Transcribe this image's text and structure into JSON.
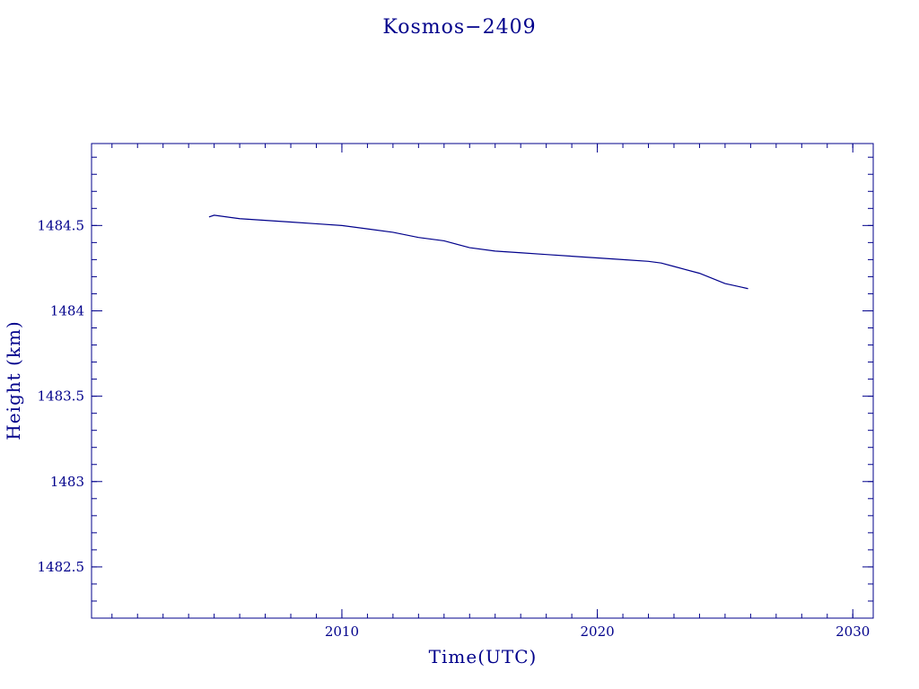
{
  "colors": {
    "ink": "#00008b",
    "background": "#ffffff"
  },
  "chart_data": {
    "type": "line",
    "title": "Kosmos−2409",
    "xlabel": "Time(UTC)",
    "ylabel": "Height (km)",
    "xlim": [
      2000.2,
      2030.8
    ],
    "ylim": [
      1482.2,
      1484.98
    ],
    "x_ticks": [
      2010,
      2020,
      2030
    ],
    "x_tick_labels": [
      "2010",
      "2020",
      "2030"
    ],
    "y_ticks": [
      1482.5,
      1483,
      1483.5,
      1484,
      1484.5
    ],
    "y_tick_labels": [
      "1482.5",
      "1483",
      "1483.5",
      "1484",
      "1484.5"
    ],
    "grid": false,
    "series": [
      {
        "x": [
          2004.8,
          2005.0,
          2006.0,
          2007.0,
          2008.0,
          2009.0,
          2010.0,
          2011.0,
          2012.0,
          2013.0,
          2013.5,
          2014.0,
          2015.0,
          2016.0,
          2017.0,
          2018.0,
          2019.0,
          2020.0,
          2021.0,
          2022.0,
          2022.5,
          2023.0,
          2024.0,
          2024.5,
          2025.0,
          2025.3,
          2025.6,
          2025.9
        ],
        "y": [
          1484.55,
          1484.56,
          1484.54,
          1484.53,
          1484.52,
          1484.51,
          1484.5,
          1484.48,
          1484.46,
          1484.43,
          1484.42,
          1484.41,
          1484.37,
          1484.35,
          1484.34,
          1484.33,
          1484.32,
          1484.31,
          1484.3,
          1484.29,
          1484.28,
          1484.26,
          1484.22,
          1484.19,
          1484.16,
          1484.15,
          1484.14,
          1484.13
        ]
      }
    ]
  }
}
